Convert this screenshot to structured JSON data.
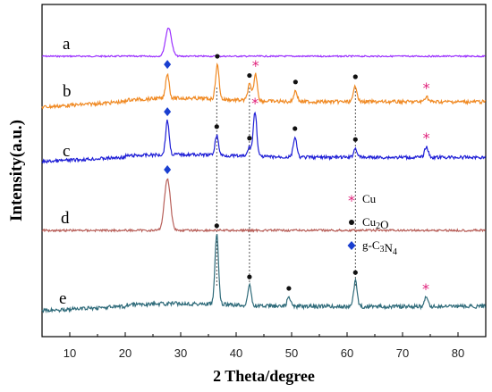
{
  "chart_data": {
    "type": "line",
    "xlabel": "2 Theta/degree",
    "ylabel": "Intensity(a.u.)",
    "xlim": [
      5,
      85
    ],
    "x_ticks": [
      "10",
      "20",
      "30",
      "40",
      "50",
      "60",
      "70",
      "80"
    ],
    "series": [
      {
        "name": "a",
        "color": "#9b30ff",
        "peaks": [
          {
            "x": 27.8,
            "h": 32
          }
        ]
      },
      {
        "name": "b",
        "color": "#f08a24",
        "peaks": [
          {
            "x": 27.6,
            "h": 28
          },
          {
            "x": 36.6,
            "h": 38
          },
          {
            "x": 42.4,
            "h": 18
          },
          {
            "x": 43.5,
            "h": 30
          },
          {
            "x": 50.7,
            "h": 12
          },
          {
            "x": 61.5,
            "h": 18
          },
          {
            "x": 74.3,
            "h": 6
          }
        ]
      },
      {
        "name": "c",
        "color": "#1f1fd6",
        "peaks": [
          {
            "x": 27.6,
            "h": 38
          },
          {
            "x": 36.5,
            "h": 22
          },
          {
            "x": 42.4,
            "h": 10
          },
          {
            "x": 43.4,
            "h": 50
          },
          {
            "x": 50.6,
            "h": 22
          },
          {
            "x": 61.5,
            "h": 10
          },
          {
            "x": 74.3,
            "h": 12
          }
        ]
      },
      {
        "name": "d",
        "color": "#b8605a",
        "peaks": [
          {
            "x": 27.6,
            "h": 58
          }
        ]
      },
      {
        "name": "e",
        "color": "#2f6b7a",
        "peaks": [
          {
            "x": 36.5,
            "h": 78
          },
          {
            "x": 42.4,
            "h": 22
          },
          {
            "x": 49.5,
            "h": 10
          },
          {
            "x": 61.5,
            "h": 28
          },
          {
            "x": 74.2,
            "h": 10
          }
        ]
      }
    ],
    "legend": [
      {
        "symbol": "*",
        "label": "Cu",
        "color": "#e0207a"
      },
      {
        "symbol": "●",
        "label": "Cu2O",
        "color": "#111111"
      },
      {
        "symbol": "◆",
        "label": "g-C3N4",
        "color": "#1a3fd0"
      }
    ],
    "reference_lines_x": [
      36.5,
      42.4,
      61.5
    ],
    "markers": [
      {
        "series": "b",
        "type": "diamond",
        "x": 27.6
      },
      {
        "series": "b",
        "type": "dot",
        "x": 36.6
      },
      {
        "series": "b",
        "type": "dot",
        "x": 42.4
      },
      {
        "series": "b",
        "type": "star",
        "x": 43.5
      },
      {
        "series": "b",
        "type": "dot",
        "x": 50.7
      },
      {
        "series": "b",
        "type": "dot",
        "x": 61.5
      },
      {
        "series": "b",
        "type": "star",
        "x": 74.3
      },
      {
        "series": "c",
        "type": "diamond",
        "x": 27.6
      },
      {
        "series": "c",
        "type": "dot",
        "x": 36.5
      },
      {
        "series": "c",
        "type": "dot",
        "x": 42.4
      },
      {
        "series": "c",
        "type": "star",
        "x": 43.4
      },
      {
        "series": "c",
        "type": "dot",
        "x": 50.6
      },
      {
        "series": "c",
        "type": "dot",
        "x": 61.5
      },
      {
        "series": "c",
        "type": "star",
        "x": 74.3
      },
      {
        "series": "d",
        "type": "diamond",
        "x": 27.6
      },
      {
        "series": "e",
        "type": "dot",
        "x": 36.5
      },
      {
        "series": "e",
        "type": "dot",
        "x": 42.4
      },
      {
        "series": "e",
        "type": "dot",
        "x": 49.5
      },
      {
        "series": "e",
        "type": "dot",
        "x": 61.5
      },
      {
        "series": "e",
        "type": "star",
        "x": 74.2
      }
    ]
  }
}
